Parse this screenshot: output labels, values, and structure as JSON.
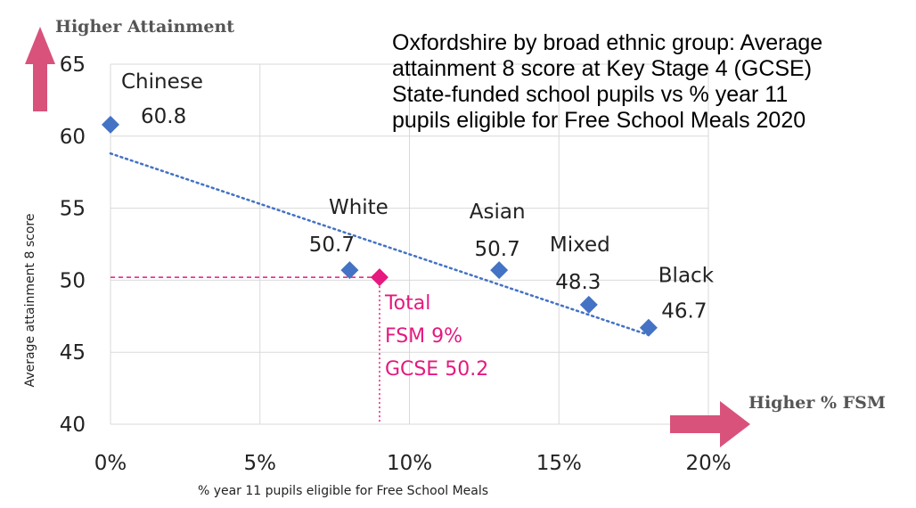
{
  "chart_data": {
    "type": "scatter",
    "title_lines": [
      "Oxfordshire by broad ethnic group: Average",
      "attainment 8 score at Key Stage 4 (GCSE)",
      "State-funded school pupils vs % year 11",
      "pupils eligible for Free School Meals 2020"
    ],
    "xlabel": "% year 11 pupils eligible for Free School Meals",
    "ylabel": "Average attainment 8 score",
    "xlim": [
      0,
      20
    ],
    "ylim": [
      40,
      65
    ],
    "x_ticks": [
      0,
      5,
      10,
      15,
      20
    ],
    "x_tick_labels": [
      "0%",
      "5%",
      "10%",
      "15%",
      "20%"
    ],
    "y_ticks": [
      40,
      45,
      50,
      55,
      60,
      65
    ],
    "y_tick_labels": [
      "40",
      "45",
      "50",
      "55",
      "60",
      "65"
    ],
    "grid": true,
    "points": [
      {
        "name": "Chinese",
        "x": 0,
        "y": 60.8,
        "value_label": "60.8"
      },
      {
        "name": "White",
        "x": 8,
        "y": 50.7,
        "value_label": "50.7"
      },
      {
        "name": "Asian",
        "x": 13,
        "y": 50.7,
        "value_label": "50.7"
      },
      {
        "name": "Mixed",
        "x": 16,
        "y": 48.3,
        "value_label": "48.3"
      },
      {
        "name": "Black",
        "x": 18,
        "y": 46.7,
        "value_label": "46.7"
      }
    ],
    "total_point": {
      "x": 9,
      "y": 50.2,
      "label_lines": [
        "Total",
        "FSM 9%",
        "GCSE 50.2"
      ]
    },
    "trendline": {
      "x": [
        0,
        18
      ],
      "y": [
        58.8,
        46.2
      ],
      "style": "dotted"
    },
    "annotations": {
      "y_arrow": "Higher Attainment",
      "x_arrow": "Higher % FSM"
    },
    "colors": {
      "points": "#4472c4",
      "trend": "#4472c4",
      "total": "#e5197f",
      "arrows": "#d8527c",
      "grid": "#d9d9d9"
    }
  }
}
